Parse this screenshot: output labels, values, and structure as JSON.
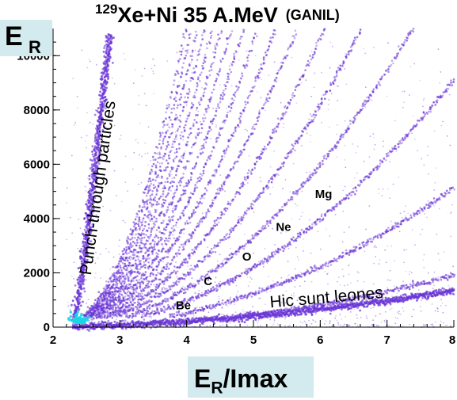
{
  "chart_data": {
    "type": "scatter",
    "title": {
      "superscript": "129",
      "text": "Xe+Ni 35 A.MeV",
      "note": "(GANIL)"
    },
    "ylabel": {
      "main": "E",
      "sub": "R"
    },
    "xlabel": {
      "main": "E",
      "sub": "R",
      "rest": "/Imax"
    },
    "xlim": [
      2,
      8
    ],
    "ylim": [
      0,
      11000
    ],
    "xticks": [
      "2",
      "3",
      "4",
      "5",
      "6",
      "7",
      "8"
    ],
    "yticks": [
      "0",
      "2000",
      "4000",
      "6000",
      "8000",
      "10000"
    ],
    "grid": false,
    "point_color": "#6a35d6",
    "annotations": [
      {
        "text": "Punch-through particles",
        "x": 2.75,
        "y": 5100,
        "rotation": -82,
        "size": 21
      },
      {
        "text": "Hic sunt leones",
        "x": 6.1,
        "y": 900,
        "rotation": -5,
        "size": 21
      },
      {
        "text": "Be",
        "x": 3.95,
        "y": 650,
        "rotation": 0,
        "size": 15
      },
      {
        "text": "C",
        "x": 4.32,
        "y": 1550,
        "rotation": 0,
        "size": 15
      },
      {
        "text": "O",
        "x": 4.9,
        "y": 2450,
        "rotation": 0,
        "size": 15
      },
      {
        "text": "Ne",
        "x": 5.45,
        "y": 3550,
        "rotation": 0,
        "size": 15
      },
      {
        "text": "Mg",
        "x": 6.05,
        "y": 4750,
        "rotation": 0,
        "size": 15
      }
    ]
  }
}
